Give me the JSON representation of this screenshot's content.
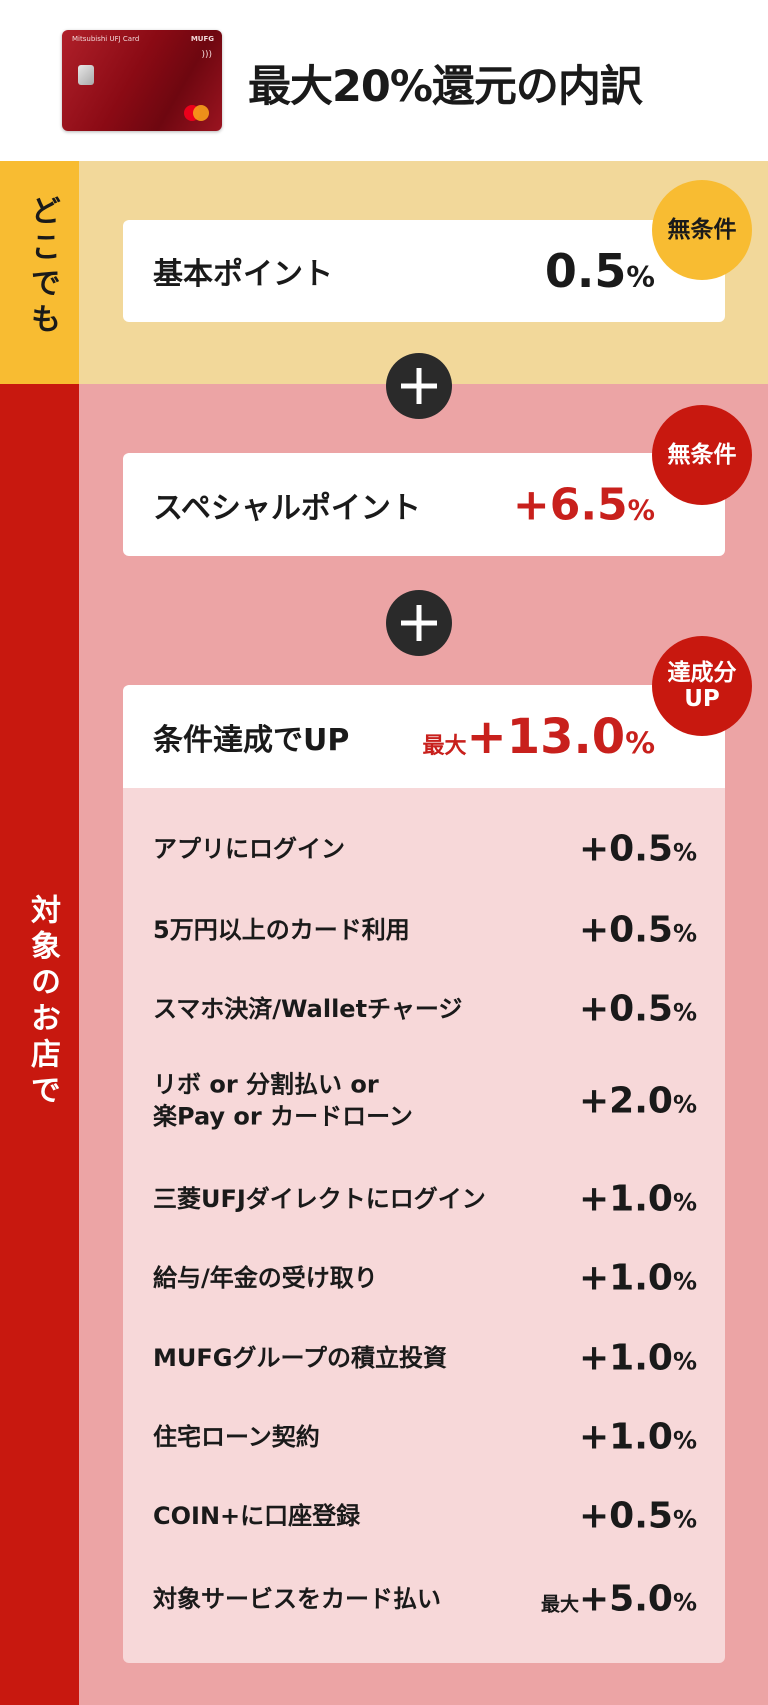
{
  "header": {
    "card_brand": "Mitsubishi UFJ Card",
    "card_logo": "MUFG",
    "title": "最大20%還元の内訳"
  },
  "colors": {
    "yellow_strip": "#f8bc32",
    "yellow_bg": "#f2d89a",
    "red_strip": "#c8180f",
    "pink_bg": "#eca4a5",
    "list_bg": "#f7d8d9",
    "accent_red": "#c8201c"
  },
  "anywhere": {
    "side_label": "どこでも",
    "label": "基本ポイント",
    "value": "0.5",
    "unit": "%",
    "badge": "無条件"
  },
  "stores": {
    "side_label": "対象のお店で",
    "special": {
      "label": "スペシャルポイント",
      "value": "+6.5",
      "unit": "%",
      "badge": "無条件"
    },
    "conditional": {
      "label": "条件達成でUP",
      "prefix": "最大",
      "value": "+13.0",
      "unit": "%",
      "badge_line1": "達成分",
      "badge_line2": "UP"
    },
    "items": [
      {
        "label": "アプリにログイン",
        "prefix": "",
        "value": "+0.5",
        "unit": "%"
      },
      {
        "label": "5万円以上のカード利用",
        "prefix": "",
        "value": "+0.5",
        "unit": "%"
      },
      {
        "label": "スマホ決済/Walletチャージ",
        "prefix": "",
        "value": "+0.5",
        "unit": "%"
      },
      {
        "label": "リボ or 分割払い or",
        "label2": "楽Pay or カードローン",
        "prefix": "",
        "value": "+2.0",
        "unit": "%"
      },
      {
        "label": "三菱UFJダイレクトにログイン",
        "prefix": "",
        "value": "+1.0",
        "unit": "%"
      },
      {
        "label": "給与/年金の受け取り",
        "prefix": "",
        "value": "+1.0",
        "unit": "%"
      },
      {
        "label": "MUFGグループの積立投資",
        "prefix": "",
        "value": "+1.0",
        "unit": "%"
      },
      {
        "label": "住宅ローン契約",
        "prefix": "",
        "value": "+1.0",
        "unit": "%"
      },
      {
        "label": "COIN+に口座登録",
        "prefix": "",
        "value": "+0.5",
        "unit": "%"
      },
      {
        "label": "対象サービスをカード払い",
        "prefix": "最大",
        "value": "+5.0",
        "unit": "%"
      }
    ]
  }
}
